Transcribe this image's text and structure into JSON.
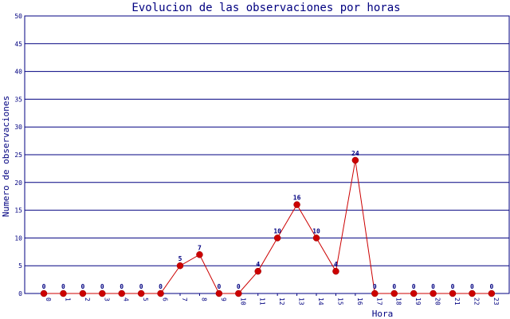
{
  "chart_data": {
    "type": "line",
    "title": "Evolucion de las observaciones por horas",
    "xlabel": "Hora",
    "ylabel": "Numero de observaciones",
    "categories": [
      "0",
      "1",
      "2",
      "3",
      "4",
      "5",
      "6",
      "7",
      "8",
      "9",
      "10",
      "11",
      "12",
      "13",
      "14",
      "15",
      "16",
      "17",
      "18",
      "19",
      "20",
      "21",
      "22",
      "23"
    ],
    "series": [
      {
        "values": [
          0,
          0,
          0,
          0,
          0,
          0,
          0,
          5,
          7,
          0,
          0,
          4,
          10,
          16,
          10,
          4,
          24,
          0,
          0,
          0,
          0,
          0,
          0,
          0
        ]
      }
    ],
    "ylim": [
      0,
      50
    ],
    "yticks": [
      0,
      5,
      10,
      15,
      20,
      25,
      30,
      35,
      40,
      45,
      50
    ],
    "grid": true,
    "colors": {
      "line": "#cc0000",
      "marker": "#cc0000",
      "grid": "#000080",
      "text": "#000080",
      "frame": "#000080"
    }
  }
}
